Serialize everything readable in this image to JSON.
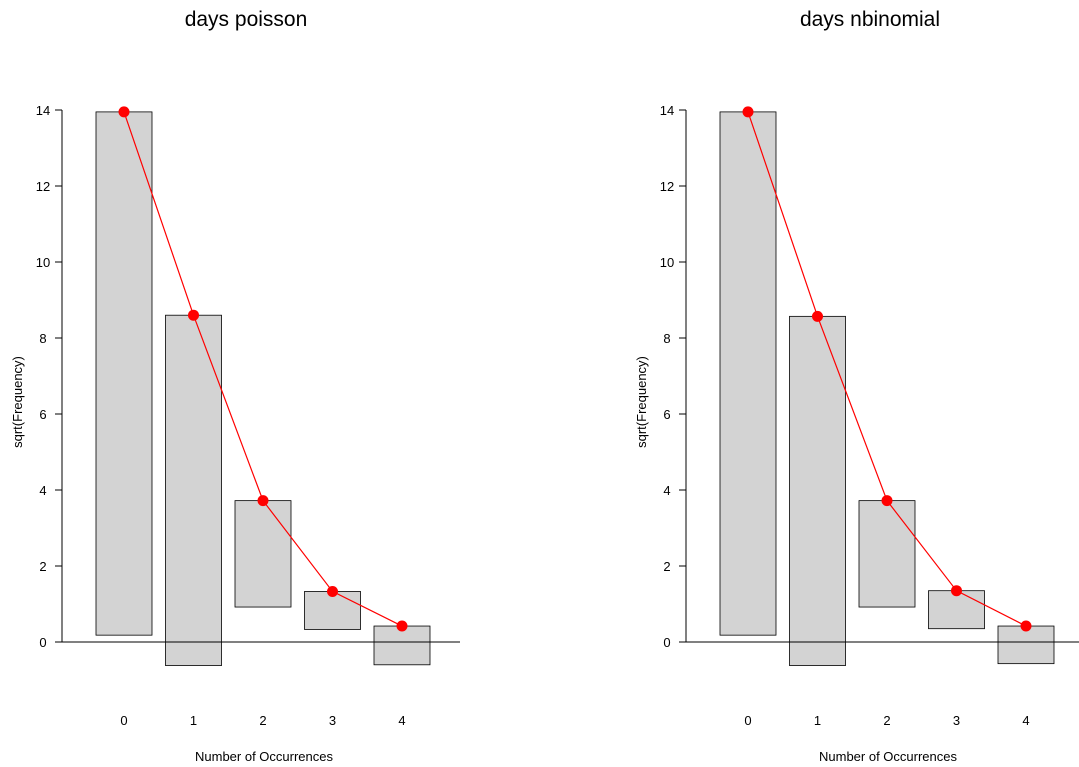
{
  "chart_data": [
    {
      "type": "rootogram",
      "title": "days poisson",
      "xlabel": "Number of Occurrences",
      "ylabel": "sqrt(Frequency)",
      "categories": [
        "0",
        "1",
        "2",
        "3",
        "4"
      ],
      "yticks": [
        "0",
        "2",
        "4",
        "6",
        "8",
        "10",
        "12",
        "14"
      ],
      "ylim": [
        0,
        14
      ],
      "series": [
        {
          "bar_top": [
            13.95,
            8.6,
            3.72,
            1.33,
            0.42
          ],
          "bar_bottom": [
            0.18,
            -0.62,
            0.92,
            0.33,
            -0.6
          ],
          "color": "#d3d3d3"
        },
        {
          "fitted": [
            13.95,
            8.6,
            3.72,
            1.33,
            0.42
          ],
          "color": "#ff0000"
        }
      ]
    },
    {
      "type": "rootogram",
      "title": "days nbinomial",
      "xlabel": "Number of Occurrences",
      "ylabel": "sqrt(Frequency)",
      "categories": [
        "0",
        "1",
        "2",
        "3",
        "4"
      ],
      "yticks": [
        "0",
        "2",
        "4",
        "6",
        "8",
        "10",
        "12",
        "14"
      ],
      "ylim": [
        0,
        14
      ],
      "series": [
        {
          "bar_top": [
            13.95,
            8.57,
            3.72,
            1.35,
            0.42
          ],
          "bar_bottom": [
            0.18,
            -0.62,
            0.92,
            0.35,
            -0.57
          ],
          "color": "#d3d3d3"
        },
        {
          "fitted": [
            13.95,
            8.57,
            3.72,
            1.35,
            0.42
          ],
          "color": "#ff0000"
        }
      ]
    }
  ]
}
